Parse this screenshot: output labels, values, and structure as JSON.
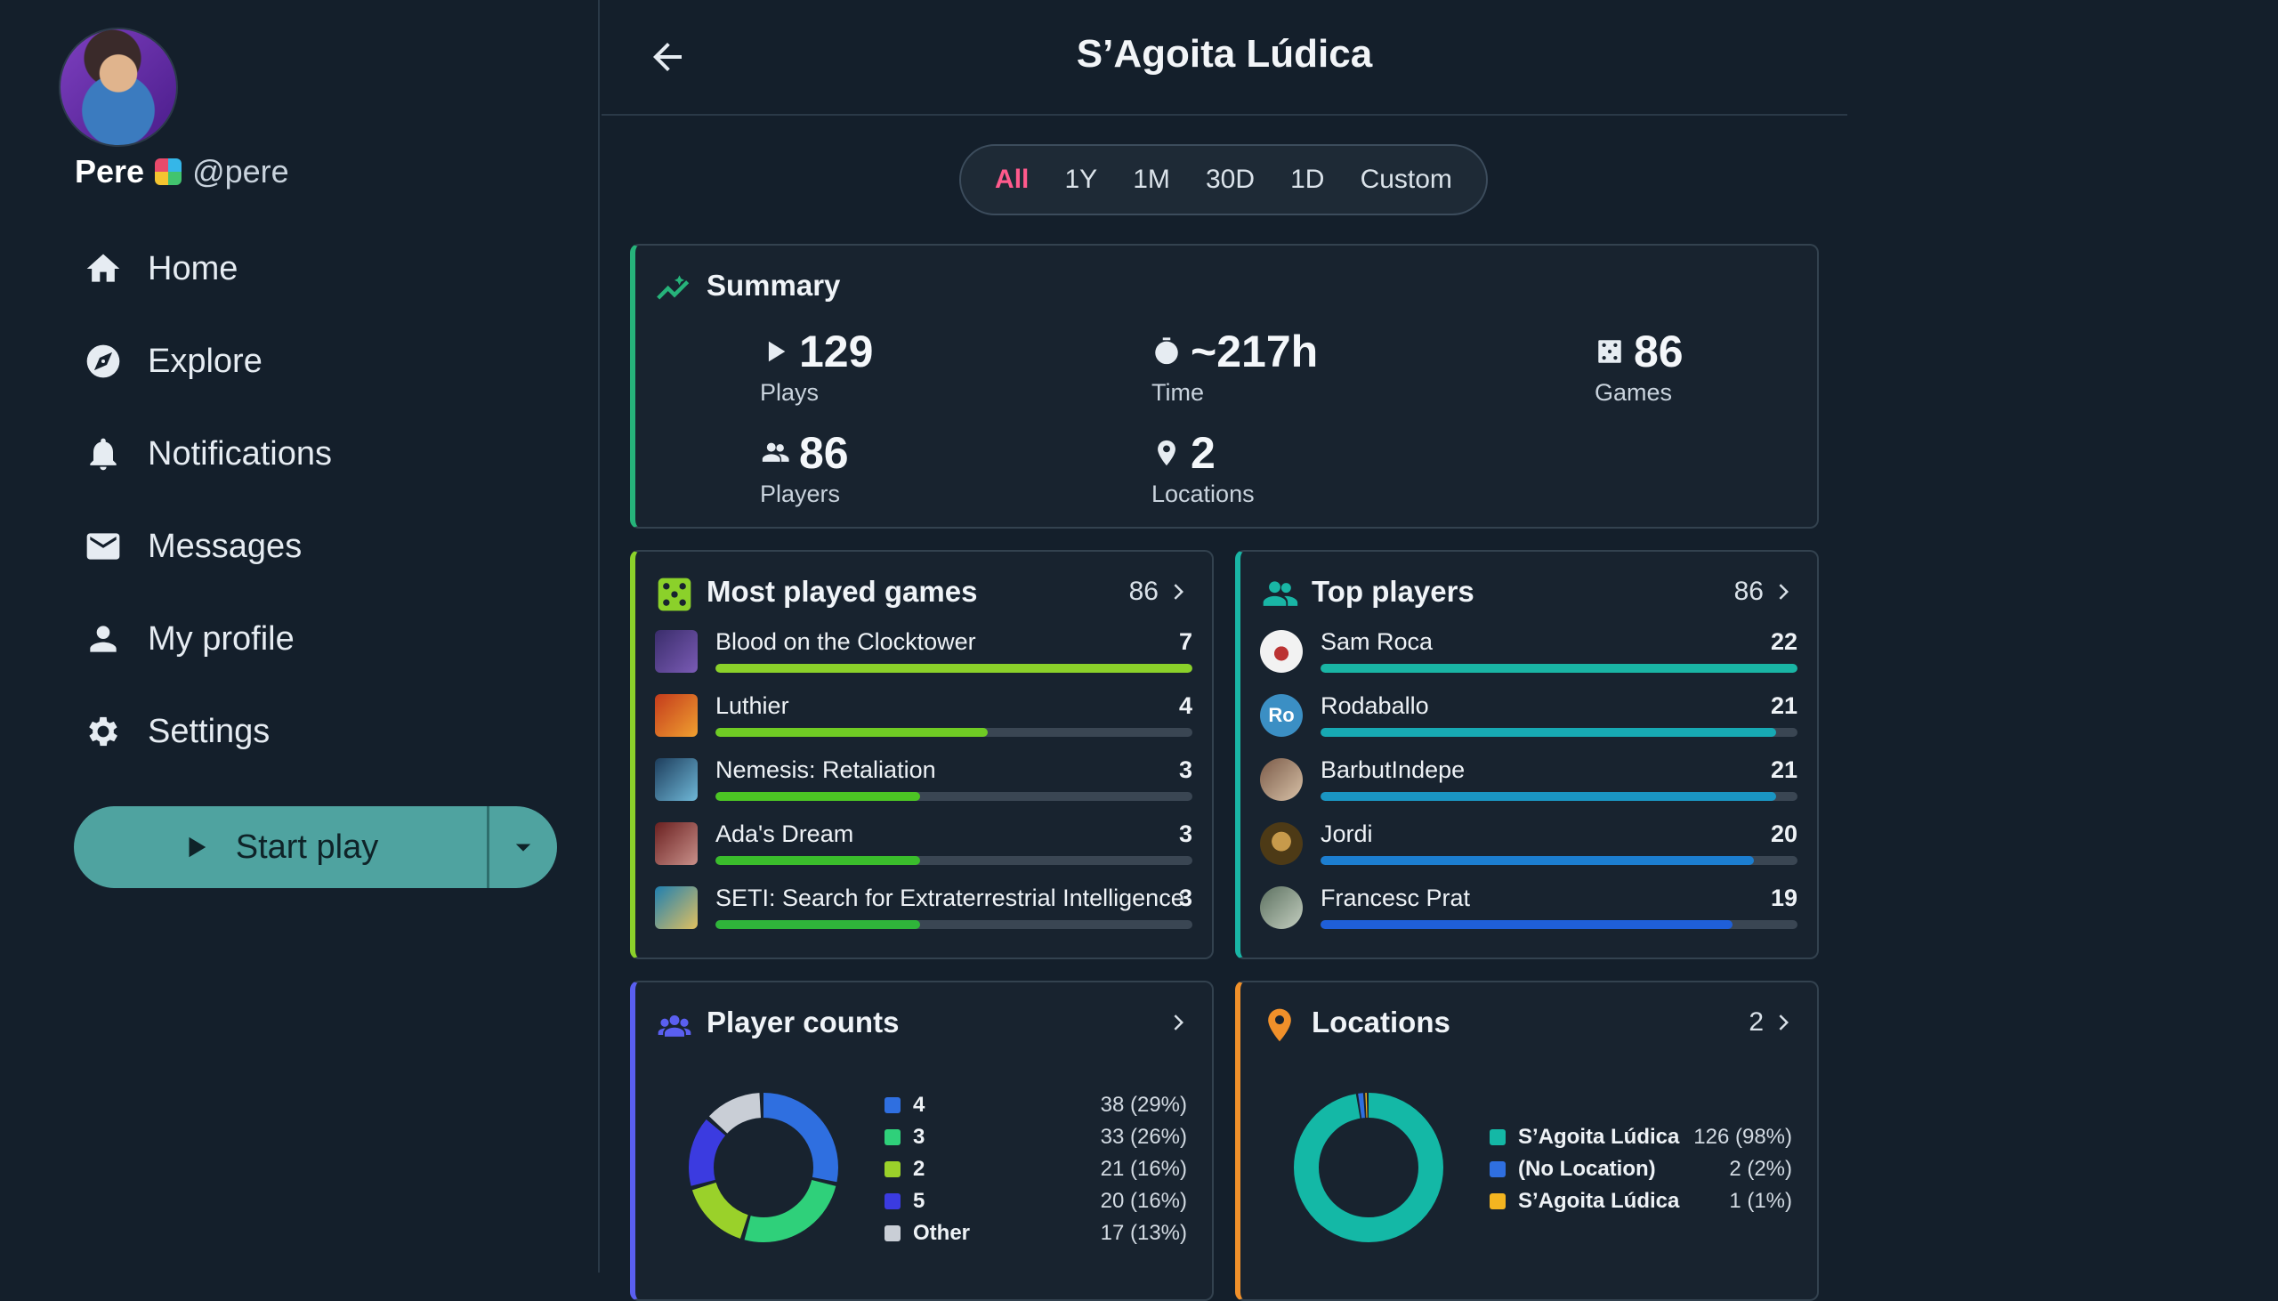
{
  "user": {
    "name": "Pere",
    "handle": "@pere"
  },
  "nav": [
    {
      "label": "Home",
      "icon": "home-icon"
    },
    {
      "label": "Explore",
      "icon": "compass-icon"
    },
    {
      "label": "Notifications",
      "icon": "bell-icon"
    },
    {
      "label": "Messages",
      "icon": "mail-icon"
    },
    {
      "label": "My profile",
      "icon": "person-icon"
    },
    {
      "label": "Settings",
      "icon": "gear-icon"
    }
  ],
  "start_play": {
    "label": "Start play"
  },
  "header": {
    "title": "S’Agoita Lúdica"
  },
  "range": {
    "options": [
      "All",
      "1Y",
      "1M",
      "30D",
      "1D",
      "Custom"
    ],
    "selected": "All"
  },
  "summary": {
    "title": "Summary",
    "plays": {
      "value": "129",
      "label": "Plays"
    },
    "time": {
      "value": "~217h",
      "label": "Time"
    },
    "games": {
      "value": "86",
      "label": "Games"
    },
    "players": {
      "value": "86",
      "label": "Players"
    },
    "locations": {
      "value": "2",
      "label": "Locations"
    }
  },
  "most_played": {
    "title": "Most played games",
    "count": "86",
    "max": 7,
    "items": [
      {
        "name": "Blood on the Clocktower",
        "value": 7,
        "color": "#8bd12a"
      },
      {
        "name": "Luthier",
        "value": 4,
        "color": "#6fcb24"
      },
      {
        "name": "Nemesis: Retaliation",
        "value": 3,
        "color": "#4cc424"
      },
      {
        "name": "Ada's Dream",
        "value": 3,
        "color": "#3abd2c"
      },
      {
        "name": "SETI: Search for Extraterrestrial Intelligence",
        "value": 3,
        "color": "#2fb53a"
      }
    ]
  },
  "top_players": {
    "title": "Top players",
    "count": "86",
    "max": 22,
    "items": [
      {
        "name": "Sam Roca",
        "value": 22,
        "color": "#19b5a5",
        "initials": ""
      },
      {
        "name": "Rodaballo",
        "value": 21,
        "color": "#17a9b3",
        "initials": "Ro"
      },
      {
        "name": "BarbutIndepe",
        "value": 21,
        "color": "#1a95c2",
        "initials": ""
      },
      {
        "name": "Jordi",
        "value": 20,
        "color": "#1c7ed0",
        "initials": ""
      },
      {
        "name": "Francesc Prat",
        "value": 19,
        "color": "#1f5fd8",
        "initials": ""
      }
    ]
  },
  "player_counts": {
    "title": "Player counts",
    "items": [
      {
        "label": "4",
        "value": "38 (29%)",
        "pct": 29,
        "color": "#2f6fe0"
      },
      {
        "label": "3",
        "value": "33 (26%)",
        "pct": 26,
        "color": "#2fd07a"
      },
      {
        "label": "2",
        "value": "21 (16%)",
        "pct": 16,
        "color": "#9ad12a"
      },
      {
        "label": "5",
        "value": "20 (16%)",
        "pct": 16,
        "color": "#3b3be0"
      },
      {
        "label": "Other",
        "value": "17 (13%)",
        "pct": 13,
        "color": "#c9ced6"
      }
    ]
  },
  "locations": {
    "title": "Locations",
    "count": "2",
    "items": [
      {
        "label": "S’Agoita Lúdica",
        "value": "126 (98%)",
        "pct": 97.7,
        "color": "#14b8a6"
      },
      {
        "label": "(No Location)",
        "value": "2 (2%)",
        "pct": 1.55,
        "color": "#2f6fe0"
      },
      {
        "label": "S’Agoita Lúdica",
        "value": "1 (1%)",
        "pct": 0.75,
        "color": "#f4b520"
      }
    ]
  }
}
